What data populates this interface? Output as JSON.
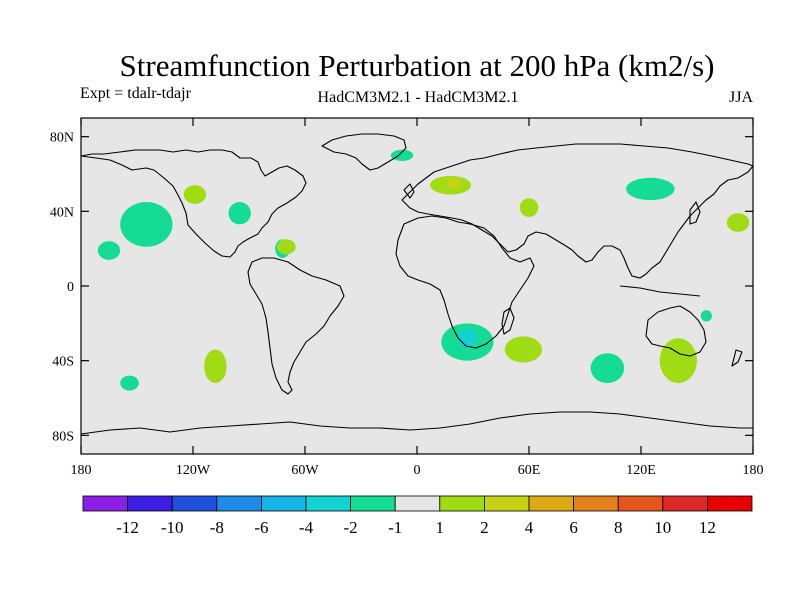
{
  "chart_data": {
    "type": "contour-map",
    "title": "Streamfunction Perturbation at 200 hPa (km2/s)",
    "left_subtitle": "Expt = tdalr-tdajr",
    "center_subtitle": "HadCM3M2.1 - HadCM3M2.1",
    "right_subtitle": "JJA",
    "projection": "cylindrical-equidistant",
    "lon_range": [
      -180,
      180
    ],
    "lat_range": [
      -90,
      90
    ],
    "lon_ticks": [
      {
        "value": -180,
        "label": "180"
      },
      {
        "value": -120,
        "label": "120W"
      },
      {
        "value": -60,
        "label": "60W"
      },
      {
        "value": 0,
        "label": "0"
      },
      {
        "value": 60,
        "label": "60E"
      },
      {
        "value": 120,
        "label": "120E"
      },
      {
        "value": 180,
        "label": "180"
      }
    ],
    "lat_ticks": [
      {
        "value": 80,
        "label": "80N"
      },
      {
        "value": 40,
        "label": "40N"
      },
      {
        "value": 0,
        "label": "0"
      },
      {
        "value": -40,
        "label": "40S"
      },
      {
        "value": -80,
        "label": "80S"
      }
    ],
    "background_color": "#e6e6e6",
    "colorbar": {
      "levels": [
        -12,
        -10,
        -8,
        -6,
        -4,
        -2,
        -1,
        1,
        2,
        4,
        6,
        8,
        10,
        12
      ],
      "labels": [
        "-12",
        "-10",
        "-8",
        "-6",
        "-4",
        "-2",
        "-1",
        "1",
        "2",
        "4",
        "6",
        "8",
        "10",
        "12"
      ],
      "colors": [
        "#8c1ee6",
        "#3c1ee6",
        "#1e50dc",
        "#1e8ce6",
        "#14b4e6",
        "#14d2d2",
        "#14dc96",
        "#e6e6e6",
        "#a0dc14",
        "#c8d214",
        "#dcaa14",
        "#e6821e",
        "#e6551e",
        "#dc2828",
        "#e60000"
      ]
    },
    "regions": [
      {
        "name": "north-pacific-negative",
        "lon": -145,
        "lat": 33,
        "rx": 14,
        "ry": 12,
        "level_index": 6
      },
      {
        "name": "hawaii-negative",
        "lon": -165,
        "lat": 19,
        "rx": 6,
        "ry": 5,
        "level_index": 6
      },
      {
        "name": "rockies-positive",
        "lon": -119,
        "lat": 49,
        "rx": 6,
        "ry": 5,
        "level_index": 8
      },
      {
        "name": "north-atlantic-negative",
        "lon": -95,
        "lat": 39,
        "rx": 6,
        "ry": 6,
        "level_index": 6
      },
      {
        "name": "caribbean-negative",
        "lon": -72,
        "lat": 20,
        "rx": 4,
        "ry": 5,
        "level_index": 6
      },
      {
        "name": "caribbean-positive",
        "lon": -70,
        "lat": 21,
        "rx": 5,
        "ry": 4,
        "level_index": 8
      },
      {
        "name": "greenland-negative",
        "lon": -8,
        "lat": 70,
        "rx": 6,
        "ry": 3,
        "level_index": 6
      },
      {
        "name": "europe-positive",
        "lon": 18,
        "lat": 54,
        "rx": 11,
        "ry": 5,
        "level_index": 8
      },
      {
        "name": "europe-core",
        "lon": 20,
        "lat": 55,
        "rx": 4,
        "ry": 3,
        "level_index": 9
      },
      {
        "name": "central-asia-positive",
        "lon": 60,
        "lat": 42,
        "rx": 5,
        "ry": 5,
        "level_index": 8
      },
      {
        "name": "east-asia-negative",
        "lon": 125,
        "lat": 52,
        "rx": 13,
        "ry": 6,
        "level_index": 6
      },
      {
        "name": "north-pacific-east-positive",
        "lon": 172,
        "lat": 34,
        "rx": 6,
        "ry": 5,
        "level_index": 8
      },
      {
        "name": "southern-africa-negative",
        "lon": 27,
        "lat": -30,
        "rx": 14,
        "ry": 10,
        "level_index": 6
      },
      {
        "name": "southern-africa-core",
        "lon": 27,
        "lat": -28,
        "rx": 5,
        "ry": 5,
        "level_index": 5
      },
      {
        "name": "south-indian-positive",
        "lon": 57,
        "lat": -34,
        "rx": 10,
        "ry": 7,
        "level_index": 8
      },
      {
        "name": "south-indian-east-negative",
        "lon": 102,
        "lat": -44,
        "rx": 9,
        "ry": 8,
        "level_index": 6
      },
      {
        "name": "australia-positive",
        "lon": 140,
        "lat": -40,
        "rx": 10,
        "ry": 12,
        "level_index": 8
      },
      {
        "name": "coral-sea-negative",
        "lon": 155,
        "lat": -16,
        "rx": 3,
        "ry": 3,
        "level_index": 6
      },
      {
        "name": "south-pacific-positive",
        "lon": -108,
        "lat": -43,
        "rx": 6,
        "ry": 9,
        "level_index": 8
      },
      {
        "name": "south-pacific-negative",
        "lon": -154,
        "lat": -52,
        "rx": 5,
        "ry": 4,
        "level_index": 6
      }
    ]
  }
}
